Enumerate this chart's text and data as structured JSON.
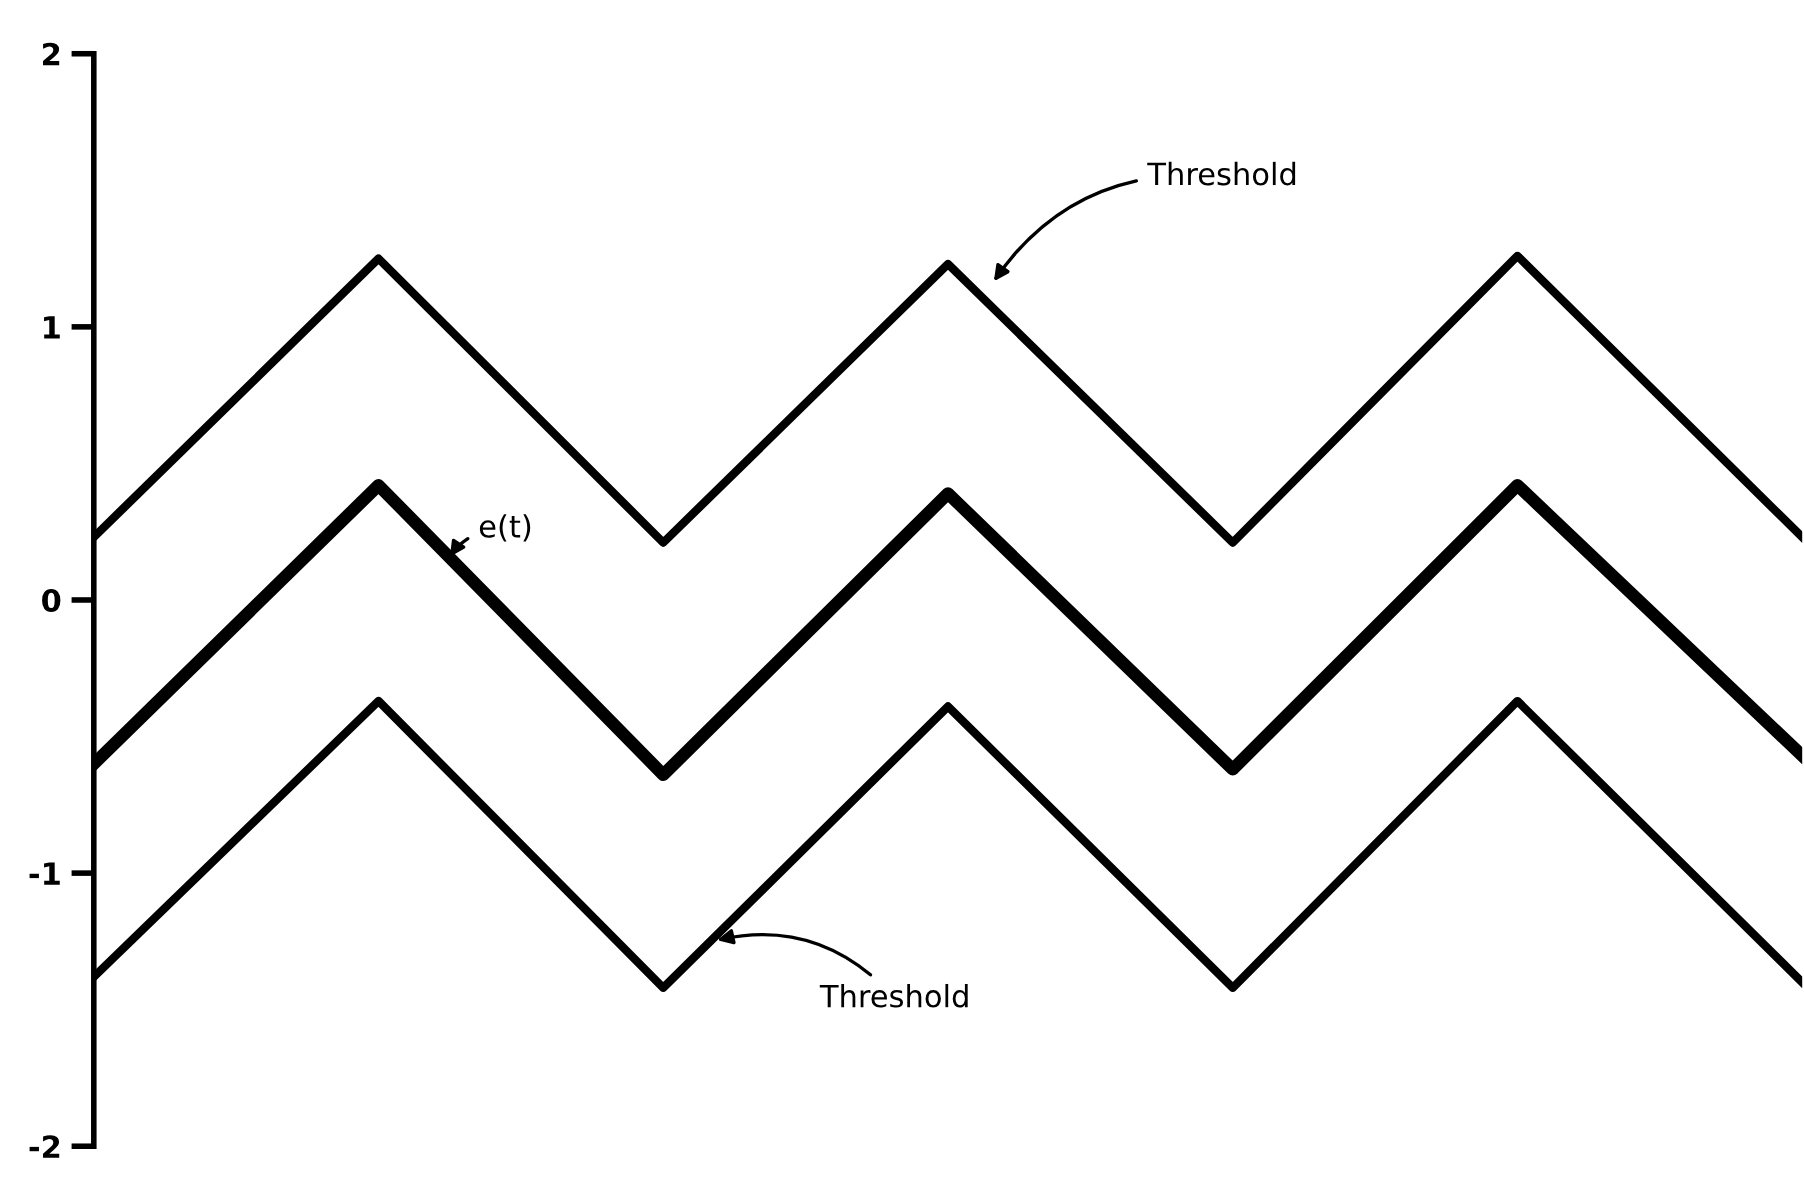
{
  "chart_data": {
    "type": "line",
    "categories": [
      null,
      null,
      null,
      null,
      null,
      null,
      null
    ],
    "series": [
      {
        "color": "#000000",
        "values": [
          0.23,
          1.25,
          0.21,
          1.23,
          0.21,
          1.26,
          0.23
        ]
      },
      {
        "color": "#000000",
        "values": [
          -0.6,
          0.42,
          -0.64,
          0.39,
          -0.62,
          0.42,
          -0.57
        ]
      },
      {
        "color": "#000000",
        "values": [
          -1.38,
          -0.37,
          -1.42,
          -0.39,
          -1.42,
          -0.37,
          -1.4
        ]
      }
    ],
    "ylim": [
      -2,
      2
    ],
    "yticks": [
      -2,
      -1,
      0,
      1,
      2
    ],
    "tick_labels": "y",
    "grid": false,
    "legend": false,
    "marker": "none",
    "line_style": "solid",
    "annotations": [
      "Threshold",
      "e(t)",
      "Threshold"
    ]
  }
}
